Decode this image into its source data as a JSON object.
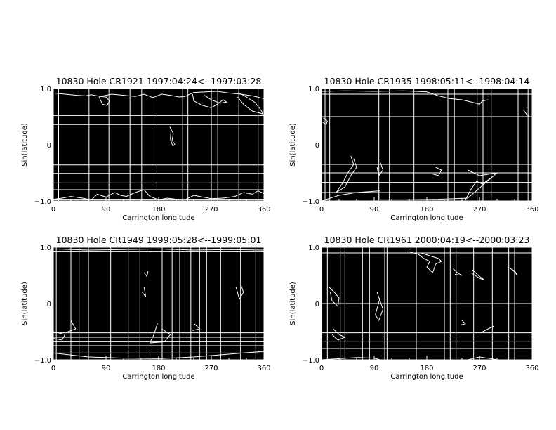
{
  "chart_data": [
    {
      "type": "line",
      "title": "10830 Hole CR1921 1997:04:24<--1997:03:28",
      "xlabel": "Carrington longitude",
      "ylabel": "Sin(latitude)",
      "xlim": [
        0,
        360
      ],
      "ylim": [
        -1.0,
        1.0
      ],
      "xticks": [
        "0",
        "90",
        "180",
        "270",
        "360"
      ],
      "yticks": [
        "-1.0",
        "0",
        "1.0"
      ],
      "grid_lon": [
        9,
        61,
        95,
        131,
        151,
        177,
        221,
        230,
        270,
        281,
        317,
        350
      ],
      "grid_sinlat": [
        0.52,
        0.36,
        -0.36,
        -0.51,
        -0.68,
        -0.8,
        -0.97
      ],
      "contours": [
        [
          [
            0,
            0.92
          ],
          [
            20,
            0.9
          ],
          [
            40,
            0.88
          ],
          [
            55,
            0.87
          ],
          [
            65,
            0.89
          ],
          [
            80,
            0.86
          ],
          [
            100,
            0.9
          ],
          [
            120,
            0.88
          ],
          [
            140,
            0.86
          ],
          [
            155,
            0.9
          ],
          [
            170,
            0.84
          ],
          [
            185,
            0.9
          ],
          [
            200,
            0.88
          ],
          [
            215,
            0.85
          ],
          [
            225,
            0.86
          ],
          [
            240,
            0.93
          ],
          [
            260,
            0.94
          ],
          [
            280,
            0.95
          ],
          [
            300,
            0.92
          ],
          [
            320,
            0.9
          ],
          [
            340,
            0.87
          ],
          [
            360,
            0.82
          ]
        ],
        [
          [
            78,
            0.85
          ],
          [
            84,
            0.72
          ],
          [
            92,
            0.7
          ],
          [
            96,
            0.78
          ],
          [
            90,
            0.85
          ],
          [
            80,
            0.86
          ]
        ],
        [
          [
            238,
            0.9
          ],
          [
            240,
            0.78
          ],
          [
            255,
            0.7
          ],
          [
            270,
            0.66
          ],
          [
            280,
            0.72
          ],
          [
            290,
            0.8
          ],
          [
            296,
            0.76
          ],
          [
            285,
            0.74
          ],
          [
            270,
            0.8
          ],
          [
            258,
            0.88
          ]
        ],
        [
          [
            318,
            0.92
          ],
          [
            330,
            0.85
          ],
          [
            345,
            0.75
          ],
          [
            356,
            0.6
          ],
          [
            358,
            0.55
          ],
          [
            340,
            0.6
          ],
          [
            325,
            0.72
          ],
          [
            315,
            0.85
          ]
        ],
        [
          [
            199,
            0.32
          ],
          [
            205,
            0.2
          ],
          [
            203,
            0.08
          ],
          [
            208,
            0
          ],
          [
            204,
            -0.02
          ],
          [
            200,
            0.1
          ],
          [
            201,
            0.25
          ]
        ],
        [
          [
            0,
            -0.97
          ],
          [
            15,
            -0.95
          ],
          [
            30,
            -0.92
          ],
          [
            50,
            -0.95
          ],
          [
            65,
            -0.98
          ],
          [
            75,
            -0.88
          ],
          [
            90,
            -0.93
          ],
          [
            105,
            -0.85
          ],
          [
            115,
            -0.9
          ],
          [
            125,
            -0.92
          ],
          [
            140,
            -0.85
          ],
          [
            155,
            -0.8
          ],
          [
            165,
            -0.92
          ],
          [
            180,
            -0.98
          ],
          [
            195,
            -0.95
          ],
          [
            210,
            -0.97
          ],
          [
            225,
            -0.98
          ],
          [
            240,
            -0.9
          ],
          [
            255,
            -0.93
          ],
          [
            270,
            -0.96
          ],
          [
            290,
            -0.95
          ],
          [
            310,
            -0.92
          ],
          [
            325,
            -0.85
          ],
          [
            340,
            -0.88
          ],
          [
            350,
            -0.82
          ],
          [
            360,
            -0.87
          ]
        ]
      ]
    },
    {
      "type": "line",
      "title": "10830 Hole CR1935 1998:05:11<--1998:04:14",
      "xlabel": "Carrington longitude",
      "ylabel": "Sin(latitude)",
      "xlim": [
        0,
        360
      ],
      "ylim": [
        -1.0,
        1.0
      ],
      "xticks": [
        "0",
        "90",
        "180",
        "270",
        "360"
      ],
      "yticks": [
        "-1.0",
        "0",
        "1.0"
      ],
      "grid_lon": [
        6,
        14,
        98,
        116,
        158,
        216,
        227,
        266,
        276,
        290,
        336,
        353
      ],
      "grid_sinlat": [
        0.9,
        0.5,
        -0.35,
        -0.5,
        -0.67,
        -0.85
      ],
      "contours": [
        [
          [
            0,
            0.95
          ],
          [
            40,
            0.96
          ],
          [
            90,
            0.95
          ],
          [
            140,
            0.96
          ],
          [
            180,
            0.94
          ],
          [
            200,
            0.87
          ],
          [
            220,
            0.82
          ],
          [
            240,
            0.8
          ],
          [
            260,
            0.75
          ],
          [
            270,
            0.72
          ],
          [
            275,
            0.78
          ],
          [
            285,
            0.8
          ]
        ],
        [
          [
            345,
            0.62
          ],
          [
            350,
            0.55
          ],
          [
            355,
            0.5
          ]
        ],
        [
          [
            3,
            0.48
          ],
          [
            10,
            0.42
          ],
          [
            8,
            0.36
          ],
          [
            2,
            0.4
          ]
        ],
        [
          [
            50,
            -0.2
          ],
          [
            55,
            -0.35
          ],
          [
            45,
            -0.5
          ],
          [
            35,
            -0.7
          ],
          [
            25,
            -0.85
          ],
          [
            40,
            -0.75
          ],
          [
            50,
            -0.55
          ],
          [
            60,
            -0.4
          ],
          [
            55,
            -0.25
          ]
        ],
        [
          [
            100,
            -0.3
          ],
          [
            105,
            -0.45
          ],
          [
            98,
            -0.55
          ],
          [
            95,
            -0.4
          ]
        ],
        [
          [
            195,
            -0.4
          ],
          [
            205,
            -0.45
          ],
          [
            200,
            -0.55
          ],
          [
            190,
            -0.52
          ]
        ],
        [
          [
            0,
            -1.0
          ],
          [
            30,
            -0.9
          ],
          [
            60,
            -0.85
          ],
          [
            100,
            -0.82
          ],
          [
            100,
            -0.98
          ],
          [
            140,
            -0.98
          ],
          [
            200,
            -0.97
          ],
          [
            250,
            -0.95
          ],
          [
            300,
            -0.5
          ],
          [
            270,
            -0.55
          ],
          [
            250,
            -0.45
          ]
        ],
        [
          [
            245,
            -1.0
          ],
          [
            255,
            -0.8
          ],
          [
            265,
            -0.65
          ],
          [
            275,
            -0.7
          ],
          [
            295,
            -0.55
          ]
        ]
      ]
    },
    {
      "type": "line",
      "title": "10830 Hole CR1949 1999:05:28<--1999:05:01",
      "xlabel": "Carrington longitude",
      "ylabel": "Sin(latitude)",
      "xlim": [
        0,
        360
      ],
      "ylim": [
        -1.0,
        1.0
      ],
      "xticks": [
        "0",
        "90",
        "180",
        "270",
        "360"
      ],
      "yticks": [
        "-1.0",
        "0",
        "1.0"
      ],
      "grid_lon": [
        5,
        30,
        44,
        60,
        98,
        128,
        148,
        165,
        186,
        203,
        216,
        235,
        250,
        262,
        286,
        320,
        346
      ],
      "grid_sinlat": [
        0.93,
        -0.52,
        -0.6,
        -0.68,
        -0.75,
        -0.88
      ],
      "contours": [
        [
          [
            0,
            0.97
          ],
          [
            60,
            0.95
          ],
          [
            120,
            0.96
          ],
          [
            180,
            0.97
          ],
          [
            240,
            0.95
          ],
          [
            300,
            0.96
          ],
          [
            360,
            0.95
          ]
        ],
        [
          [
            155,
            0.55
          ],
          [
            160,
            0.48
          ],
          [
            162,
            0.58
          ]
        ],
        [
          [
            152,
            0.2
          ],
          [
            158,
            0.12
          ],
          [
            155,
            0.3
          ]
        ],
        [
          [
            312,
            0.3
          ],
          [
            318,
            0.08
          ],
          [
            325,
            0.2
          ],
          [
            320,
            0.35
          ]
        ],
        [
          [
            30,
            -0.3
          ],
          [
            38,
            -0.45
          ],
          [
            25,
            -0.5
          ]
        ],
        [
          [
            0,
            -0.5
          ],
          [
            20,
            -0.55
          ],
          [
            15,
            -0.65
          ],
          [
            0,
            -0.62
          ]
        ],
        [
          [
            178,
            -0.35
          ],
          [
            172,
            -0.55
          ],
          [
            165,
            -0.7
          ],
          [
            190,
            -0.68
          ],
          [
            200,
            -0.55
          ],
          [
            185,
            -0.45
          ]
        ],
        [
          [
            240,
            -0.35
          ],
          [
            250,
            -0.45
          ],
          [
            238,
            -0.48
          ]
        ],
        [
          [
            0,
            -0.88
          ],
          [
            60,
            -0.95
          ],
          [
            120,
            -0.97
          ],
          [
            180,
            -0.98
          ],
          [
            240,
            -0.95
          ],
          [
            300,
            -0.9
          ],
          [
            360,
            -0.85
          ]
        ]
      ]
    },
    {
      "type": "line",
      "title": "10830 Hole CR1961 2000:04:19<--2000:03:23",
      "xlabel": "Carrington longitude",
      "ylabel": "Sin(latitude)",
      "xlim": [
        0,
        360
      ],
      "ylim": [
        -1.0,
        1.0
      ],
      "xticks": [
        "0",
        "90",
        "180",
        "270",
        "360"
      ],
      "yticks": [
        "-1.0",
        "0",
        "1.0"
      ],
      "grid_lon": [
        10,
        32,
        40,
        70,
        82,
        108,
        112,
        162,
        210,
        220,
        230,
        260,
        292,
        320,
        330
      ],
      "grid_sinlat": [
        0.9,
        0,
        -0.52,
        -0.67,
        -0.8
      ],
      "contours": [
        [
          [
            150,
            0.92
          ],
          [
            165,
            0.88
          ],
          [
            175,
            0.8
          ],
          [
            185,
            0.75
          ],
          [
            180,
            0.65
          ],
          [
            190,
            0.55
          ],
          [
            195,
            0.7
          ],
          [
            205,
            0.75
          ],
          [
            200,
            0.8
          ],
          [
            185,
            0.85
          ],
          [
            170,
            0.9
          ]
        ],
        [
          [
            225,
            0.62
          ],
          [
            232,
            0.55
          ],
          [
            240,
            0.5
          ],
          [
            228,
            0.52
          ]
        ],
        [
          [
            255,
            0.55
          ],
          [
            270,
            0.45
          ],
          [
            278,
            0.42
          ],
          [
            268,
            0.5
          ],
          [
            258,
            0.6
          ]
        ],
        [
          [
            318,
            0.65
          ],
          [
            330,
            0.58
          ],
          [
            335,
            0.5
          ],
          [
            325,
            0.62
          ]
        ],
        [
          [
            12,
            0.3
          ],
          [
            22,
            0.2
          ],
          [
            30,
            0.1
          ],
          [
            28,
            -0.05
          ],
          [
            18,
            0.05
          ],
          [
            15,
            0.2
          ]
        ],
        [
          [
            95,
            0.2
          ],
          [
            100,
            0.05
          ],
          [
            105,
            -0.1
          ],
          [
            98,
            -0.3
          ],
          [
            92,
            -0.2
          ],
          [
            100,
            0.1
          ]
        ],
        [
          [
            240,
            -0.3
          ],
          [
            246,
            -0.36
          ],
          [
            238,
            -0.38
          ]
        ],
        [
          [
            272,
            -0.52
          ],
          [
            285,
            -0.45
          ],
          [
            295,
            -0.4
          ]
        ],
        [
          [
            20,
            -0.45
          ],
          [
            30,
            -0.55
          ],
          [
            40,
            -0.6
          ],
          [
            28,
            -0.65
          ],
          [
            18,
            -0.55
          ]
        ],
        [
          [
            0,
            -1.0
          ],
          [
            30,
            -0.98
          ],
          [
            60,
            -0.96
          ],
          [
            90,
            -0.97
          ],
          [
            100,
            -1.0
          ]
        ],
        [
          [
            250,
            -1.0
          ],
          [
            270,
            -0.95
          ],
          [
            290,
            -0.98
          ],
          [
            300,
            -1.0
          ]
        ]
      ]
    }
  ]
}
